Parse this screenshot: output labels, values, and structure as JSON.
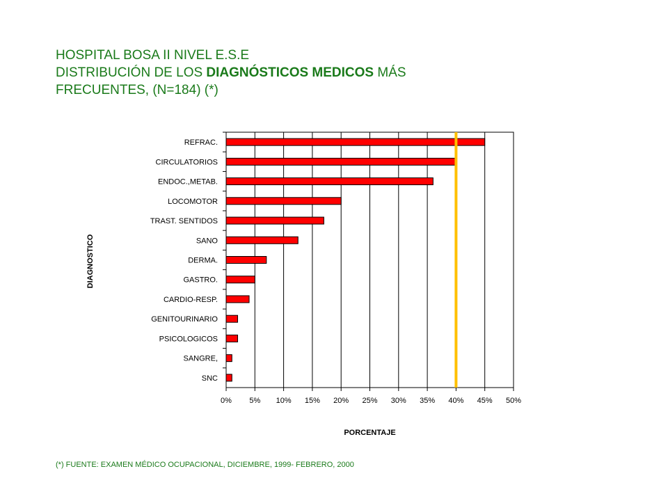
{
  "header": {
    "line1": "HOSPITAL BOSA II NIVEL E.S.E",
    "line2_pre": "DISTRIBUCIÓN DE LOS ",
    "line2_bold": "DIAGNÓSTICOS MEDICOS",
    "line2_post": " MÁS",
    "line3": "FRECUENTES,  (N=184) (*)"
  },
  "footnote": "(*) FUENTE: EXAMEN MÉDICO OCUPACIONAL, DICIEMBRE, 1999- FEBRERO, 2000",
  "colors": {
    "title": "#1a7a1a",
    "bar": "#ff0000",
    "reference_line": "#ffc000"
  },
  "chart_data": {
    "type": "bar",
    "orientation": "horizontal",
    "xlabel": "PORCENTAJE",
    "ylabel": "DIAGNOSTICO",
    "xlim": [
      0,
      50
    ],
    "x_ticks": [
      "0%",
      "5%",
      "10%",
      "15%",
      "20%",
      "25%",
      "30%",
      "35%",
      "40%",
      "45%",
      "50%"
    ],
    "grid": true,
    "reference_line_value": 40,
    "categories": [
      "REFRAC.",
      "CIRCULATORIOS",
      "ENDOC.,METAB.",
      "LOCOMOTOR",
      "TRAST. SENTIDOS",
      "SANO",
      "DERMA.",
      "GASTRO.",
      "CARDIO-RESP.",
      "GENITOURINARIO",
      "PSICOLOGICOS",
      "SANGRE,",
      "SNC"
    ],
    "values": [
      45,
      40,
      36,
      20,
      17,
      12.5,
      7,
      5,
      4,
      2,
      2,
      1,
      1
    ]
  }
}
